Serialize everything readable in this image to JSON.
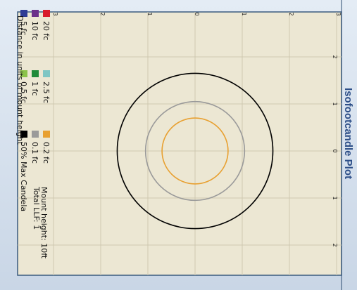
{
  "chart_data": {
    "type": "scatter",
    "title": "Isofootcandle Plot",
    "axis_label": "Distance in units of mount height",
    "xlim": [
      -3,
      3
    ],
    "ylim": [
      -3,
      3
    ],
    "x_ticks": [
      {
        "value": 3,
        "label": "3"
      },
      {
        "value": 2,
        "label": "2"
      },
      {
        "value": 1,
        "label": "1"
      },
      {
        "value": 0,
        "label": "0"
      },
      {
        "value": -1,
        "label": "1"
      },
      {
        "value": -2,
        "label": "2"
      },
      {
        "value": -3,
        "label": "3"
      }
    ],
    "y_ticks": [
      {
        "value": 2,
        "label": "2"
      },
      {
        "value": 1,
        "label": "1"
      },
      {
        "value": 0,
        "label": "0"
      },
      {
        "value": -1,
        "label": "1"
      },
      {
        "value": -2,
        "label": "2"
      }
    ],
    "grid": true,
    "legend": [
      {
        "name": "20 fc",
        "color": "#d81b2b"
      },
      {
        "name": "10 fc",
        "color": "#6b2f8a"
      },
      {
        "name": "5 fc",
        "color": "#2e3c95"
      },
      {
        "name": "2.5 fc",
        "color": "#7fc6c4"
      },
      {
        "name": "1 fc",
        "color": "#1f8a3a"
      },
      {
        "name": "0.5 fc",
        "color": "#8bc34a"
      },
      {
        "name": "0.2 fc",
        "color": "#e8a030"
      },
      {
        "name": "0.1 fc",
        "color": "#9a9a9a"
      },
      {
        "name": "50% Max Candela",
        "color": "#000000"
      }
    ],
    "info": {
      "mount_height": "Mount height: 10ft",
      "total_llf": "Total LLF: 1"
    },
    "series": [
      {
        "name": "0.2 fc",
        "shape": "circle",
        "center": [
          0,
          0
        ],
        "radius": 0.7,
        "color": "#e8a030"
      },
      {
        "name": "0.1 fc",
        "shape": "circle",
        "center": [
          0,
          0
        ],
        "radius": 1.05,
        "color": "#9a9a9a"
      },
      {
        "name": "50% Max Candela",
        "shape": "circle",
        "center": [
          0,
          0
        ],
        "radius": 1.65,
        "color": "#000000"
      }
    ]
  }
}
